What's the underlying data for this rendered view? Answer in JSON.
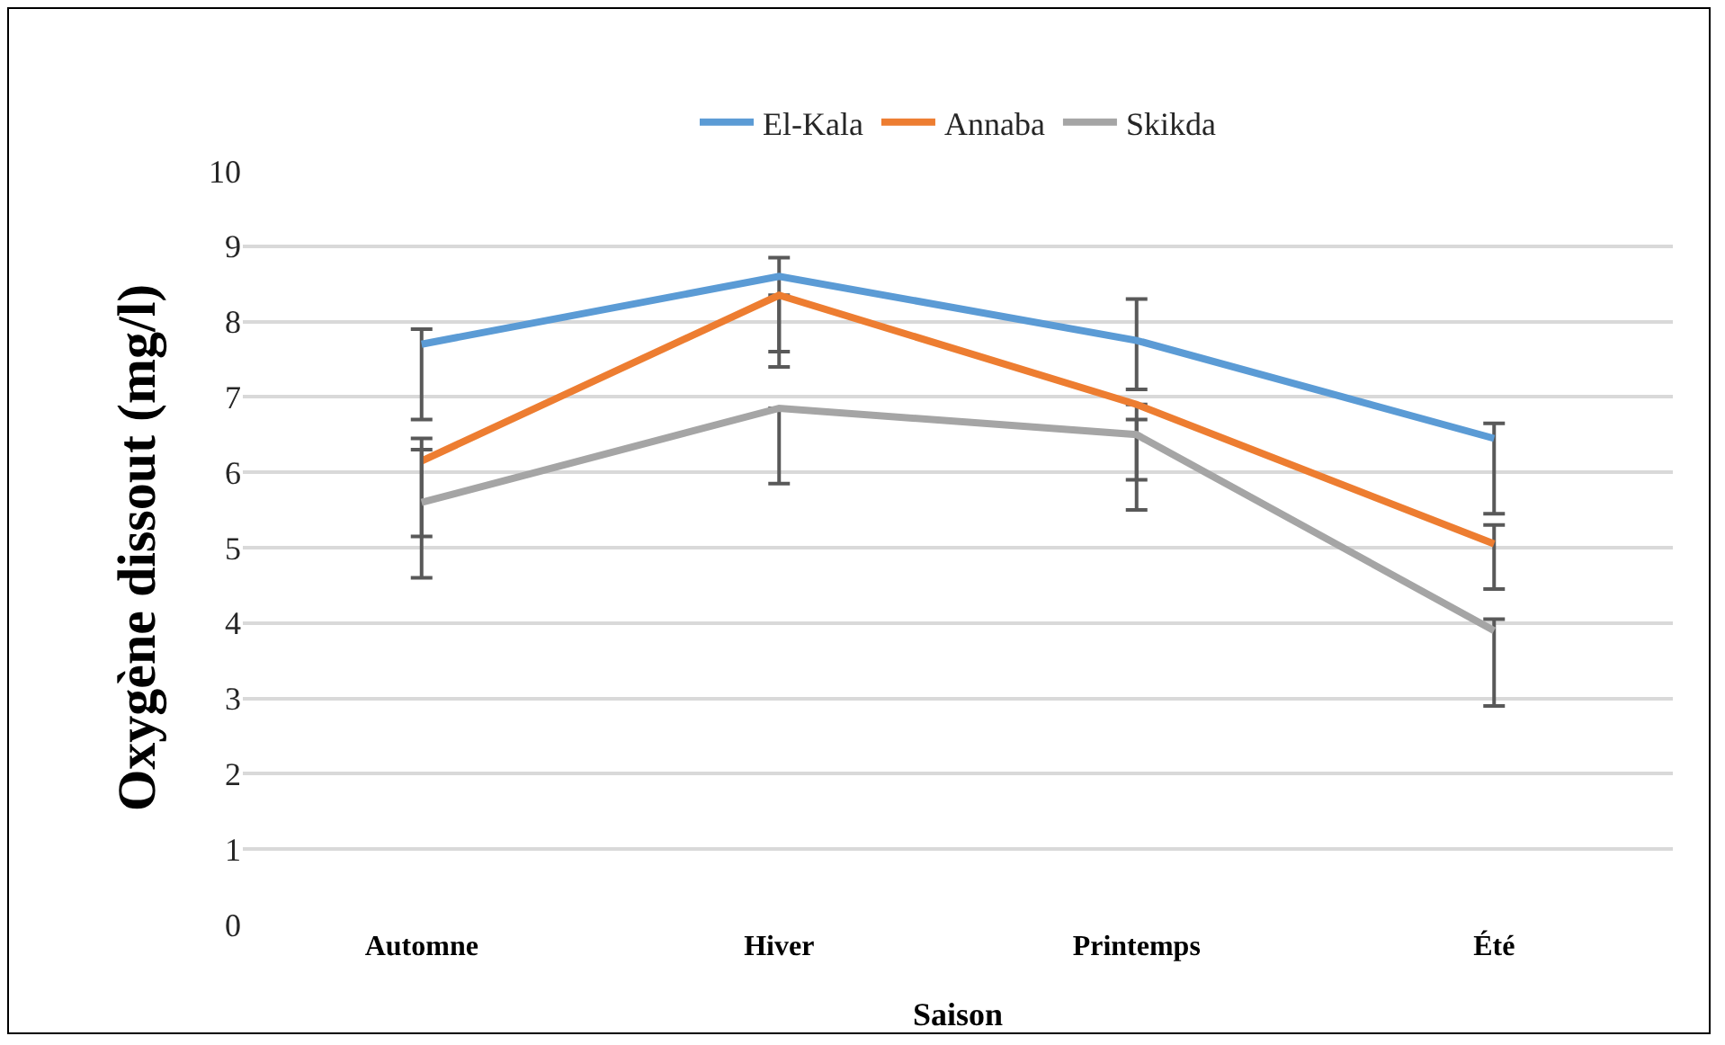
{
  "chart_data": {
    "type": "line",
    "xlabel": "Saison",
    "ylabel": "Oxygène dissout (mg/l)",
    "categories": [
      "Automne",
      "Hiver",
      "Printemps",
      "Été"
    ],
    "series": [
      {
        "name": "El-Kala",
        "color": "#5b9bd5",
        "values": [
          7.7,
          8.6,
          7.75,
          6.45
        ],
        "errors": [
          [
            6.7,
            7.9
          ],
          [
            7.4,
            8.85
          ],
          [
            7.1,
            8.3
          ],
          [
            5.45,
            6.65
          ]
        ]
      },
      {
        "name": "Annaba",
        "color": "#ed7d31",
        "values": [
          6.15,
          8.35,
          6.9,
          5.05
        ],
        "errors": [
          [
            5.15,
            6.45
          ],
          [
            7.6,
            8.35
          ],
          [
            5.9,
            6.9
          ],
          [
            4.45,
            5.3
          ]
        ]
      },
      {
        "name": "Skikda",
        "color": "#a5a5a5",
        "values": [
          5.6,
          6.85,
          6.5,
          3.9
        ],
        "errors": [
          [
            4.6,
            6.3
          ],
          [
            5.85,
            6.85
          ],
          [
            5.5,
            6.7
          ],
          [
            2.9,
            4.05
          ]
        ]
      }
    ],
    "ylim": [
      0,
      10
    ],
    "yticks": [
      0,
      1,
      2,
      3,
      4,
      5,
      6,
      7,
      8,
      9,
      10
    ],
    "grid": "y",
    "legend": "top",
    "marker": "none",
    "line_style": "solid"
  }
}
